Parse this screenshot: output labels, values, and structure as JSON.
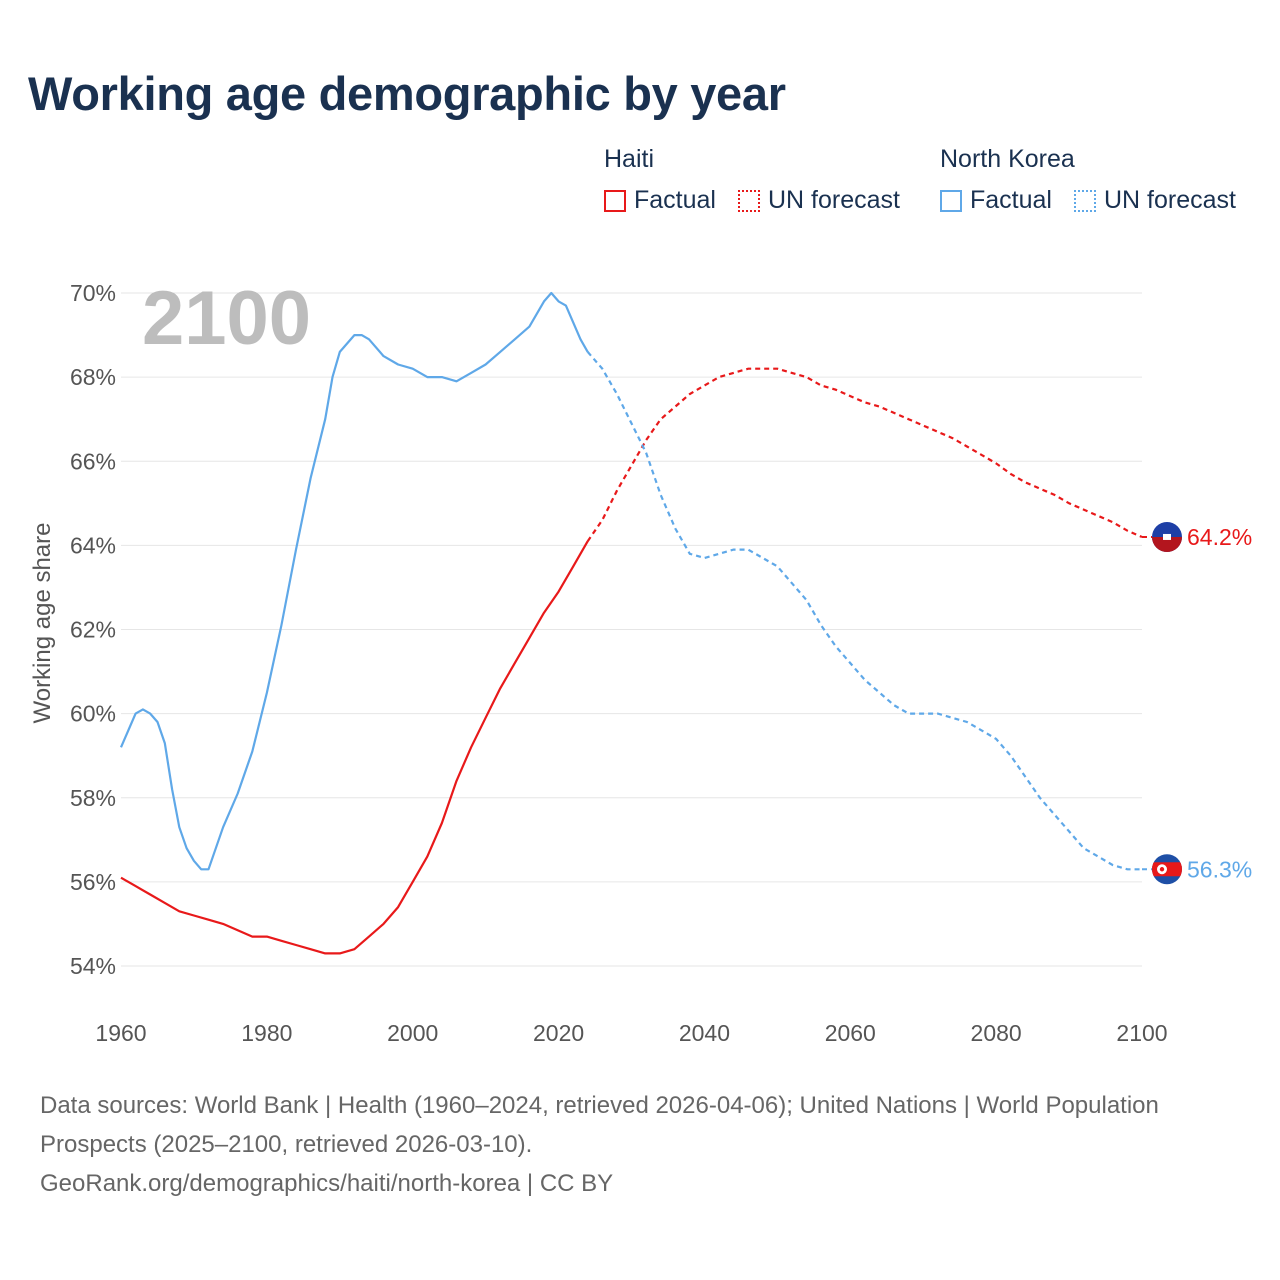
{
  "title": "Working age demographic by year",
  "legend": {
    "groups": [
      {
        "name": "Haiti",
        "factual": "Factual",
        "forecast": "UN forecast"
      },
      {
        "name": "North Korea",
        "factual": "Factual",
        "forecast": "UN forecast"
      }
    ]
  },
  "colors": {
    "haiti": "#e8191a",
    "north_korea": "#5fa8e8",
    "title": "#1a3150"
  },
  "year_watermark": "2100",
  "end_labels": {
    "haiti": "64.2%",
    "north_korea": "56.3%"
  },
  "flags": {
    "haiti": "haiti-flag-icon",
    "north_korea": "north-korea-flag-icon"
  },
  "footer": {
    "sources": "Data sources: World Bank | Health (1960–2024, retrieved 2026-04-06); United Nations | World Population Prospects (2025–2100, retrieved 2026-03-10).",
    "credit": "GeoRank.org/demographics/haiti/north-korea | CC BY"
  },
  "chart_data": {
    "type": "line",
    "title": "Working age demographic by year",
    "xlabel": "",
    "ylabel": "Working age share",
    "xlim": [
      1960,
      2100
    ],
    "ylim": [
      53,
      70.5
    ],
    "x_ticks": [
      1960,
      1980,
      2000,
      2020,
      2040,
      2060,
      2080,
      2100
    ],
    "y_ticks": [
      54,
      56,
      58,
      60,
      62,
      64,
      66,
      68,
      70
    ],
    "y_tick_labels": [
      "54%",
      "56%",
      "58%",
      "60%",
      "62%",
      "64%",
      "66%",
      "68%",
      "70%"
    ],
    "factual_end_year": 2024,
    "series": [
      {
        "name": "Haiti",
        "points": [
          [
            1960,
            56.1
          ],
          [
            1962,
            55.9
          ],
          [
            1964,
            55.7
          ],
          [
            1966,
            55.5
          ],
          [
            1968,
            55.3
          ],
          [
            1970,
            55.2
          ],
          [
            1972,
            55.1
          ],
          [
            1974,
            55.0
          ],
          [
            1976,
            54.85
          ],
          [
            1978,
            54.7
          ],
          [
            1980,
            54.7
          ],
          [
            1982,
            54.6
          ],
          [
            1984,
            54.5
          ],
          [
            1986,
            54.4
          ],
          [
            1988,
            54.3
          ],
          [
            1990,
            54.3
          ],
          [
            1992,
            54.4
          ],
          [
            1994,
            54.7
          ],
          [
            1996,
            55.0
          ],
          [
            1998,
            55.4
          ],
          [
            2000,
            56.0
          ],
          [
            2002,
            56.6
          ],
          [
            2004,
            57.4
          ],
          [
            2006,
            58.4
          ],
          [
            2008,
            59.2
          ],
          [
            2010,
            59.9
          ],
          [
            2012,
            60.6
          ],
          [
            2014,
            61.2
          ],
          [
            2016,
            61.8
          ],
          [
            2018,
            62.4
          ],
          [
            2020,
            62.9
          ],
          [
            2022,
            63.5
          ],
          [
            2024,
            64.1
          ],
          [
            2026,
            64.6
          ],
          [
            2028,
            65.3
          ],
          [
            2030,
            65.9
          ],
          [
            2032,
            66.5
          ],
          [
            2034,
            67.0
          ],
          [
            2036,
            67.3
          ],
          [
            2038,
            67.6
          ],
          [
            2040,
            67.8
          ],
          [
            2042,
            68.0
          ],
          [
            2044,
            68.1
          ],
          [
            2046,
            68.2
          ],
          [
            2048,
            68.2
          ],
          [
            2050,
            68.2
          ],
          [
            2052,
            68.1
          ],
          [
            2054,
            68.0
          ],
          [
            2056,
            67.8
          ],
          [
            2058,
            67.7
          ],
          [
            2060,
            67.55
          ],
          [
            2062,
            67.4
          ],
          [
            2064,
            67.3
          ],
          [
            2066,
            67.15
          ],
          [
            2068,
            67.0
          ],
          [
            2070,
            66.85
          ],
          [
            2072,
            66.7
          ],
          [
            2074,
            66.55
          ],
          [
            2076,
            66.35
          ],
          [
            2078,
            66.15
          ],
          [
            2080,
            65.95
          ],
          [
            2082,
            65.7
          ],
          [
            2084,
            65.5
          ],
          [
            2086,
            65.35
          ],
          [
            2088,
            65.2
          ],
          [
            2090,
            65.0
          ],
          [
            2092,
            64.85
          ],
          [
            2094,
            64.7
          ],
          [
            2096,
            64.55
          ],
          [
            2098,
            64.35
          ],
          [
            2100,
            64.2
          ]
        ]
      },
      {
        "name": "North Korea",
        "points": [
          [
            1960,
            59.2
          ],
          [
            1962,
            60.0
          ],
          [
            1963,
            60.1
          ],
          [
            1964,
            60.0
          ],
          [
            1965,
            59.8
          ],
          [
            1966,
            59.3
          ],
          [
            1967,
            58.2
          ],
          [
            1968,
            57.3
          ],
          [
            1969,
            56.8
          ],
          [
            1970,
            56.5
          ],
          [
            1971,
            56.3
          ],
          [
            1972,
            56.3
          ],
          [
            1974,
            57.3
          ],
          [
            1976,
            58.1
          ],
          [
            1978,
            59.1
          ],
          [
            1980,
            60.5
          ],
          [
            1982,
            62.1
          ],
          [
            1984,
            63.9
          ],
          [
            1986,
            65.6
          ],
          [
            1988,
            67.0
          ],
          [
            1989,
            68.0
          ],
          [
            1990,
            68.6
          ],
          [
            1991,
            68.8
          ],
          [
            1992,
            69.0
          ],
          [
            1993,
            69.0
          ],
          [
            1994,
            68.9
          ],
          [
            1996,
            68.5
          ],
          [
            1998,
            68.3
          ],
          [
            2000,
            68.2
          ],
          [
            2002,
            68.0
          ],
          [
            2004,
            68.0
          ],
          [
            2006,
            67.9
          ],
          [
            2008,
            68.1
          ],
          [
            2010,
            68.3
          ],
          [
            2012,
            68.6
          ],
          [
            2014,
            68.9
          ],
          [
            2016,
            69.2
          ],
          [
            2018,
            69.8
          ],
          [
            2019,
            70.0
          ],
          [
            2020,
            69.8
          ],
          [
            2021,
            69.7
          ],
          [
            2022,
            69.3
          ],
          [
            2023,
            68.9
          ],
          [
            2024,
            68.6
          ],
          [
            2026,
            68.2
          ],
          [
            2028,
            67.6
          ],
          [
            2030,
            66.9
          ],
          [
            2032,
            66.2
          ],
          [
            2034,
            65.2
          ],
          [
            2036,
            64.4
          ],
          [
            2038,
            63.8
          ],
          [
            2040,
            63.7
          ],
          [
            2042,
            63.8
          ],
          [
            2044,
            63.9
          ],
          [
            2046,
            63.9
          ],
          [
            2048,
            63.7
          ],
          [
            2050,
            63.5
          ],
          [
            2052,
            63.1
          ],
          [
            2054,
            62.7
          ],
          [
            2056,
            62.1
          ],
          [
            2058,
            61.6
          ],
          [
            2060,
            61.2
          ],
          [
            2062,
            60.8
          ],
          [
            2064,
            60.5
          ],
          [
            2066,
            60.2
          ],
          [
            2068,
            60.0
          ],
          [
            2070,
            60.0
          ],
          [
            2072,
            60.0
          ],
          [
            2074,
            59.9
          ],
          [
            2076,
            59.8
          ],
          [
            2078,
            59.6
          ],
          [
            2080,
            59.4
          ],
          [
            2082,
            59.0
          ],
          [
            2084,
            58.5
          ],
          [
            2086,
            58.0
          ],
          [
            2088,
            57.6
          ],
          [
            2090,
            57.2
          ],
          [
            2092,
            56.8
          ],
          [
            2094,
            56.6
          ],
          [
            2096,
            56.4
          ],
          [
            2098,
            56.3
          ],
          [
            2100,
            56.3
          ]
        ]
      }
    ]
  }
}
